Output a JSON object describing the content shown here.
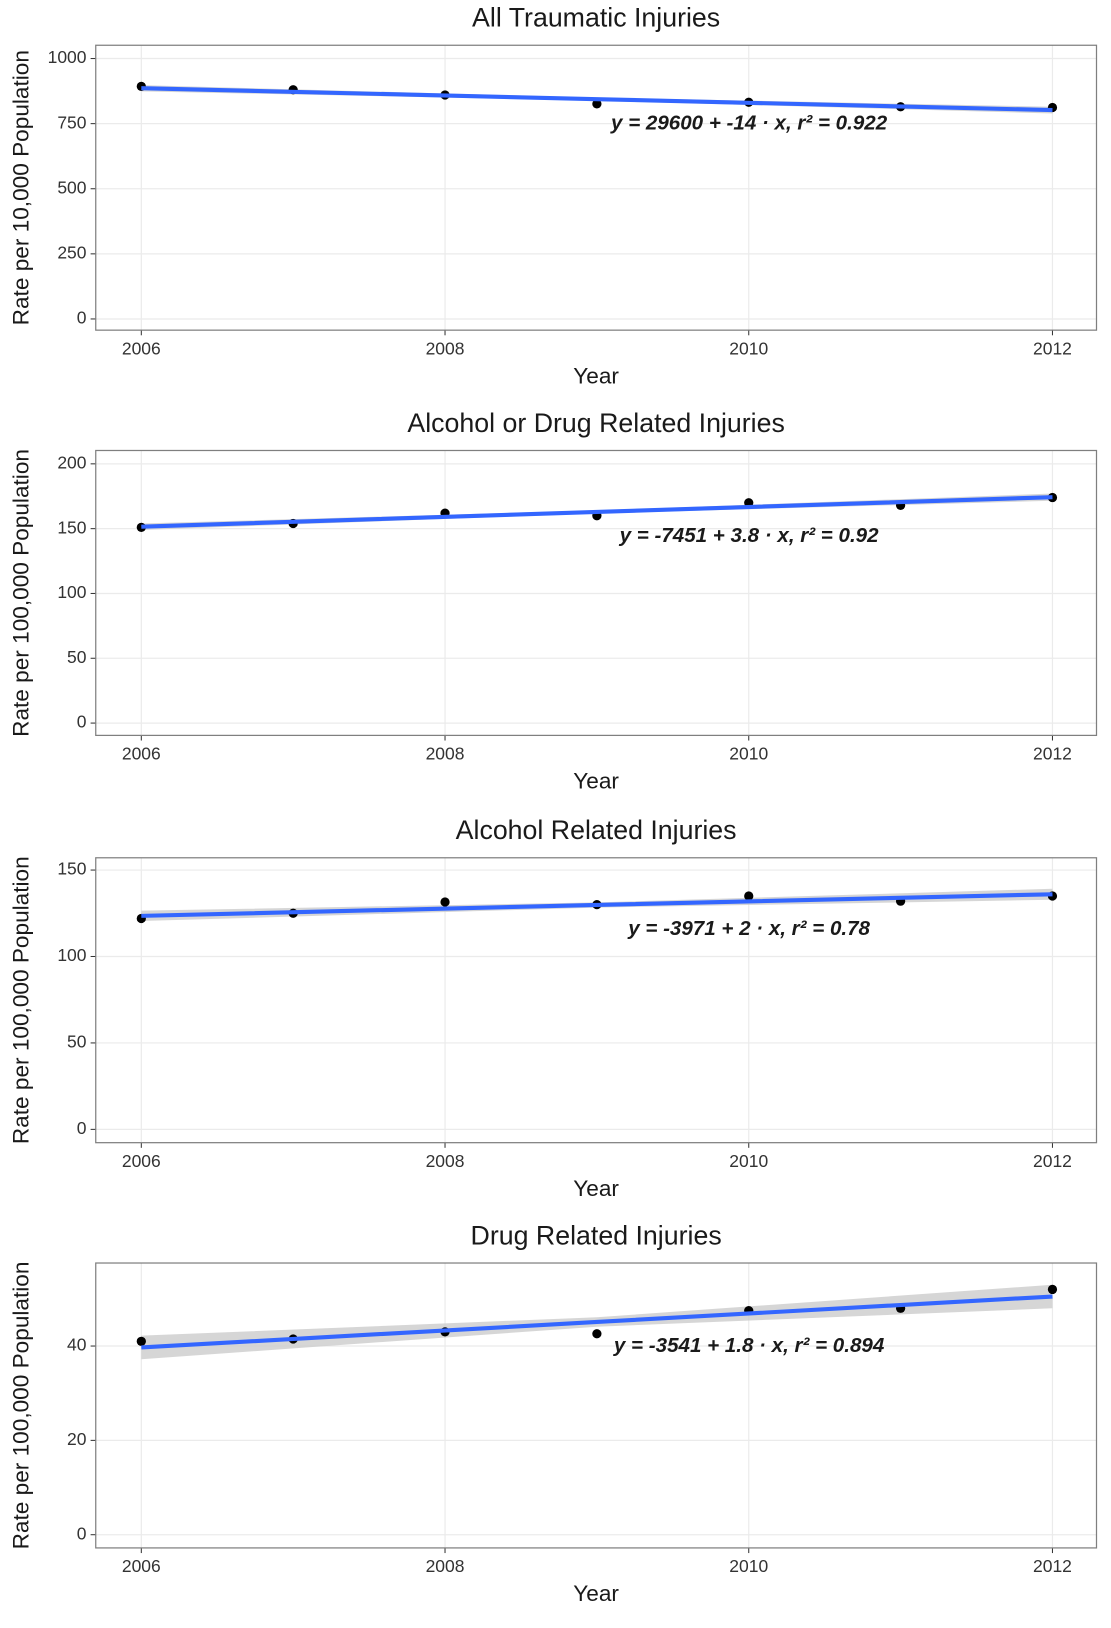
{
  "chart_data": [
    {
      "type": "scatter",
      "title": "All Traumatic Injuries",
      "x_label": "Year",
      "y_label": "Rate per 10,000 Population",
      "x": [
        2006,
        2007,
        2008,
        2009,
        2010,
        2011,
        2012
      ],
      "values": [
        893,
        880,
        860,
        826,
        832,
        815,
        812
      ],
      "color": "#000000",
      "trend": {
        "x": [
          2006,
          2009,
          2012
        ],
        "values": [
          886,
          844,
          802
        ],
        "lower": [
          874,
          838,
          789
        ],
        "upper": [
          898,
          850,
          815
        ],
        "color": "#3366ff",
        "band_color": "#cccccc"
      },
      "annotation": "y = 29600 + -14 · x,  r² = 0.922",
      "xlim": [
        2005.7,
        2012.29
      ],
      "xticks": [
        2006,
        2008,
        2010,
        2012
      ],
      "ylim": [
        -43,
        1051
      ],
      "yticks": [
        0,
        250,
        500,
        750,
        1000
      ],
      "grid": true
    },
    {
      "type": "scatter",
      "title": "Alcohol or Drug Related Injuries",
      "x_label": "Year",
      "y_label": "Rate per 100,000 Population",
      "x": [
        2006,
        2007,
        2008,
        2009,
        2010,
        2011,
        2012
      ],
      "values": [
        151,
        154,
        162,
        160,
        170,
        168,
        174
      ],
      "color": "#000000",
      "trend": {
        "x": [
          2006,
          2009,
          2012
        ],
        "values": [
          151.5,
          162.9,
          174.3
        ],
        "lower": [
          149,
          161.7,
          171.5
        ],
        "upper": [
          154,
          164.1,
          177.1
        ],
        "color": "#3366ff",
        "band_color": "#cccccc"
      },
      "annotation": "y = -7451 + 3.8 · x,  r² = 0.92",
      "xlim": [
        2005.7,
        2012.29
      ],
      "xticks": [
        2006,
        2008,
        2010,
        2012
      ],
      "ylim": [
        -9.5,
        210.3
      ],
      "yticks": [
        0,
        50,
        100,
        150,
        200
      ],
      "grid": true
    },
    {
      "type": "scatter",
      "title": "Alcohol Related Injuries",
      "x_label": "Year",
      "y_label": "Rate per 100,000 Population",
      "x": [
        2006,
        2007,
        2008,
        2009,
        2010,
        2011,
        2012
      ],
      "values": [
        122,
        125,
        131.5,
        130,
        135,
        132,
        135
      ],
      "color": "#000000",
      "trend": {
        "x": [
          2006,
          2009,
          2012
        ],
        "values": [
          123.5,
          129.8,
          136
        ],
        "lower": [
          120.5,
          128.3,
          132.8
        ],
        "upper": [
          126.5,
          131.3,
          139.2
        ],
        "color": "#3366ff",
        "band_color": "#cccccc"
      },
      "annotation": "y = -3971 + 2 · x,  r² = 0.78",
      "xlim": [
        2005.7,
        2012.29
      ],
      "xticks": [
        2006,
        2008,
        2010,
        2012
      ],
      "ylim": [
        -7.7,
        157.1
      ],
      "yticks": [
        0,
        50,
        100,
        150
      ],
      "grid": true
    },
    {
      "type": "scatter",
      "title": "Drug Related Injuries",
      "x_label": "Year",
      "y_label": "Rate per 100,000 Population",
      "x": [
        2006,
        2007,
        2008,
        2009,
        2010,
        2011,
        2012
      ],
      "values": [
        41,
        41.5,
        43,
        42.6,
        47.5,
        48,
        52
      ],
      "color": "#000000",
      "trend": {
        "x": [
          2006,
          2009,
          2012
        ],
        "values": [
          39.7,
          45.1,
          50.5
        ],
        "lower": [
          37.2,
          44.1,
          48
        ],
        "upper": [
          42.2,
          46.1,
          53
        ],
        "color": "#3366ff",
        "band_color": "#cccccc"
      },
      "annotation": "y = -3541 + 1.8 · x,  r² = 0.894",
      "xlim": [
        2005.7,
        2012.29
      ],
      "xticks": [
        2006,
        2008,
        2010,
        2012
      ],
      "ylim": [
        -2.8,
        57.6
      ],
      "yticks": [
        0,
        20,
        40
      ],
      "grid": true
    }
  ]
}
